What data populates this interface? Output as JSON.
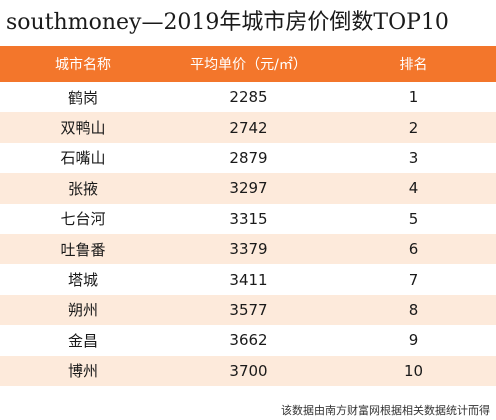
{
  "title": "southmoney—2019年城市房价倒数TOP10",
  "columns": [
    "城市名称",
    "平均单价（元/㎡）",
    "排名"
  ],
  "rows": [
    {
      "city": "鹤岗",
      "price": "2285",
      "rank": "1"
    },
    {
      "city": "双鸭山",
      "price": "2742",
      "rank": "2"
    },
    {
      "city": "石嘴山",
      "price": "2879",
      "rank": "3"
    },
    {
      "city": "张掖",
      "price": "3297",
      "rank": "4"
    },
    {
      "city": "七台河",
      "price": "3315",
      "rank": "5"
    },
    {
      "city": "吐鲁番",
      "price": "3379",
      "rank": "6"
    },
    {
      "city": "塔城",
      "price": "3411",
      "rank": "7"
    },
    {
      "city": "朔州",
      "price": "3577",
      "rank": "8"
    },
    {
      "city": "金昌",
      "price": "3662",
      "rank": "9"
    },
    {
      "city": "博州",
      "price": "3700",
      "rank": "10"
    }
  ],
  "footer": "该数据由南方财富网根据相关数据统计而得",
  "colors": {
    "header_bg": "#f3762b",
    "stripe": "#fdeadb"
  }
}
